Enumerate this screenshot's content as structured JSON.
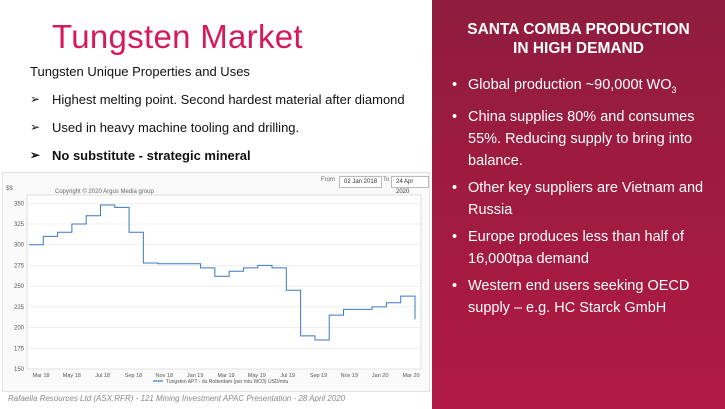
{
  "left": {
    "title": "Tungsten Market",
    "subtitle": "Tungsten Unique Properties and Uses",
    "bullets": [
      "Highest melting point. Second hardest material after diamond",
      "Used in heavy machine tooling and drilling.",
      "No substitute - strategic mineral"
    ],
    "bullet_marker": "➢"
  },
  "right": {
    "heading_line1": "SANTA COMBA PRODUCTION",
    "heading_line2": "IN HIGH DEMAND",
    "bullets": [
      {
        "text": "Global production ~90,000t WO",
        "sub": "3"
      },
      {
        "text": "China supplies 80% and consumes 55%. Reducing supply to bring into balance.",
        "sub": ""
      },
      {
        "text": "Other key suppliers are Vietnam and Russia",
        "sub": ""
      },
      {
        "text": "Europe produces less than half of 16,000tpa demand",
        "sub": ""
      },
      {
        "text": "Western end users seeking OECD supply – e.g. HC Starck GmbH",
        "sub": ""
      }
    ],
    "bullet_marker": "•"
  },
  "footer": "Rafaella Resources Ltd (ASX:RFR) - 121 Mining Investment APAC Presentation - 28 April 2020",
  "colors": {
    "title": "#d6195b",
    "panel": "#9d1b3f",
    "line": "#3a78c2"
  },
  "chart_data": {
    "type": "line",
    "copyright": "Copyright © 2020 Argus Media group",
    "unit_label": "$$",
    "date_from_label": "From",
    "date_from": "02 Jan 2018",
    "date_to_label": "To",
    "date_to": "24 Apr 2020",
    "legend": "Tungsten APT ‑ du Rotterdam (per mtu WO3) USD/mtu",
    "yticks": [
      "350",
      "325",
      "300",
      "275",
      "250",
      "225",
      "200",
      "175",
      "150"
    ],
    "ylim": [
      150,
      360
    ],
    "xticks": [
      "Mar 18",
      "May 18",
      "Jul 18",
      "Sep 18",
      "Nov 18",
      "Jan 19",
      "Mar 19",
      "May 19",
      "Jul 19",
      "Sep 19",
      "Nov 19",
      "Jan 20",
      "Mar 20"
    ],
    "x": [
      "2018-01",
      "2018-02",
      "2018-03",
      "2018-04",
      "2018-05",
      "2018-06",
      "2018-07",
      "2018-08",
      "2018-09",
      "2018-10",
      "2018-11",
      "2018-12",
      "2019-01",
      "2019-02",
      "2019-03",
      "2019-04",
      "2019-05",
      "2019-06",
      "2019-07",
      "2019-08",
      "2019-09",
      "2019-10",
      "2019-11",
      "2019-12",
      "2020-01",
      "2020-02",
      "2020-03",
      "2020-04"
    ],
    "values": [
      300,
      310,
      315,
      325,
      335,
      348,
      345,
      315,
      278,
      277,
      277,
      277,
      272,
      262,
      268,
      272,
      275,
      272,
      245,
      190,
      185,
      215,
      222,
      222,
      225,
      230,
      238,
      210
    ]
  }
}
